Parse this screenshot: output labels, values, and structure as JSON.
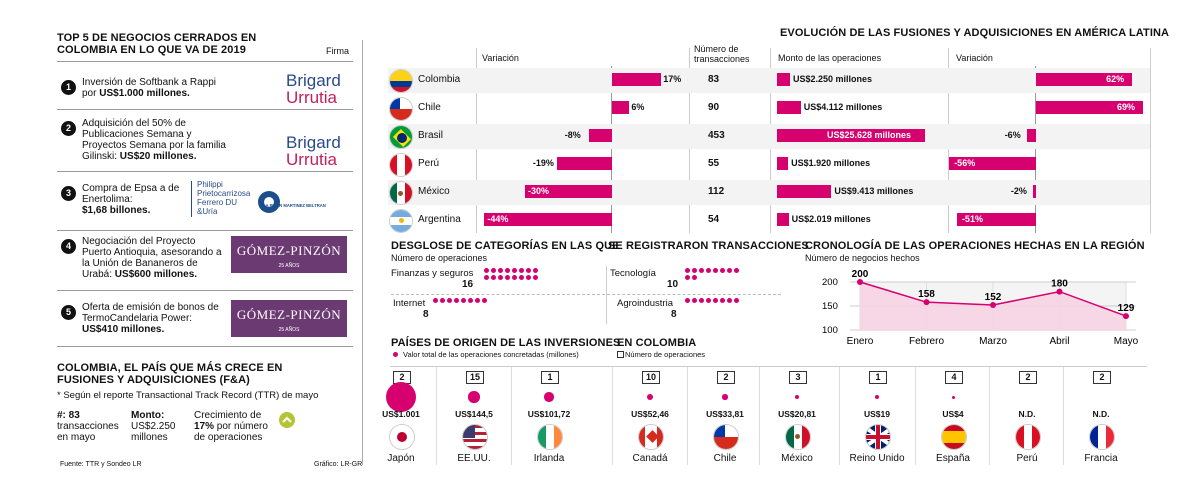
{
  "left": {
    "title": "TOP 5 DE NEGOCIOS CERRADOS EN COLOMBIA EN LO QUE VA DE 2019",
    "firma_label": "Firma",
    "deals": [
      {
        "num": "1",
        "line1": "Inversión de Softbank a Rappi",
        "line2": "por ",
        "bold": "US$1.000 millones."
      },
      {
        "num": "2",
        "line1": "Adquisición del 50% de",
        "line2": "Publicaciones Semana y",
        "line3": "Proyectos Semana por la familia",
        "line4": "Gilinski: ",
        "bold": "US$20 millones."
      },
      {
        "num": "3",
        "line1": "Compra de Epsa a de",
        "line2": "Enertolima:",
        "bold": "$1,68 billones."
      },
      {
        "num": "4",
        "line1": "Negociación del Proyecto",
        "line2": "Puerto Antioquia, asesorando a",
        "line3": "la Unión de Bananeros de",
        "line4": "Urabá: ",
        "bold": "US$600 millones."
      },
      {
        "num": "5",
        "line1": "Oferta de emisión de bonos de",
        "line2": "TermoCandelaria Power:",
        "bold": "US$410 millones."
      }
    ],
    "logos": {
      "brigard_top": "Brigard",
      "brigard_bottom": "Urrutia",
      "philippi": [
        "Philippi",
        "Prietocarrizosa",
        "Ferrero DU",
        "&Uría"
      ],
      "dla": "DLA PIPER MARTINEZ BELTRAN",
      "gp": "GÓMEZ-PINZÓN",
      "gp_sub": "25 AÑOS"
    },
    "section2_title": "COLOMBIA, EL PAÍS QUE MÁS CRECE EN FUSIONES Y ADQUISICIONES (F&A)",
    "section2_note": "* Según el reporte Transactional Track Record (TTR) de mayo",
    "stat1_label": "#: 83",
    "stat1_sub1": "transacciones",
    "stat1_sub2": "en mayo",
    "stat2_label": "Monto:",
    "stat2_sub1": "US$2.250",
    "stat2_sub2": "millones",
    "stat3_line1": "Crecimiento de",
    "stat3_line2a": "17%",
    "stat3_line2b": " por número",
    "stat3_line3": "de operaciones",
    "source": "Fuente: TTR y Sondeo LR",
    "grafico": "Gráfico: LR-GR"
  },
  "colors": {
    "accent": "#d6006f",
    "pink_light": "#f7d3e4",
    "gp_purple": "#6c3a73",
    "brand_blue": "#2b4a8b",
    "brand_red": "#c21f59"
  },
  "evolution": {
    "title": "EVOLUCIÓN DE LAS FUSIONES Y ADQUISICIONES EN AMÉRICA LATINA",
    "col_variacion": "Variación",
    "col_numero1": "Número de",
    "col_numero2": "transacciones",
    "col_monto": "Monto de las operaciones",
    "col_variacion2": "Variación"
  },
  "chart_data": [
    {
      "type": "table",
      "title": "EVOLUCIÓN DE LAS FUSIONES Y ADQUISICIONES EN AMÉRICA LATINA",
      "rows": [
        {
          "country": "Colombia",
          "flag": "colombia-flag",
          "variacion": 17,
          "variacion_label": "17%",
          "transacciones": "83",
          "monto": 2250,
          "monto_label": "US$2.250 millones",
          "variacion2": 62,
          "variacion2_label": "62%"
        },
        {
          "country": "Chile",
          "flag": "chile-flag",
          "variacion": 6,
          "variacion_label": "6%",
          "transacciones": "90",
          "monto": 4112,
          "monto_label": "US$4.112 millones",
          "variacion2": 69,
          "variacion2_label": "69%"
        },
        {
          "country": "Brasil",
          "flag": "brasil-flag",
          "variacion": -8,
          "variacion_label": "-8%",
          "transacciones": "453",
          "monto": 25628,
          "monto_label": "US$25.628 millones",
          "variacion2": -6,
          "variacion2_label": "-6%"
        },
        {
          "country": "Perú",
          "flag": "peru-flag",
          "variacion": -19,
          "variacion_label": "-19%",
          "transacciones": "55",
          "monto": 1920,
          "monto_label": "US$1.920 millones",
          "variacion2": -56,
          "variacion2_label": "-56%"
        },
        {
          "country": "México",
          "flag": "mexico-flag",
          "variacion": -30,
          "variacion_label": "-30%",
          "transacciones": "112",
          "monto": 9413,
          "monto_label": "US$9.413 millones",
          "variacion2": -2,
          "variacion2_label": "-2%"
        },
        {
          "country": "Argentina",
          "flag": "argentina-flag",
          "variacion": -44,
          "variacion_label": "-44%",
          "transacciones": "54",
          "monto": 2019,
          "monto_label": "US$2.019 millones",
          "variacion2": -51,
          "variacion2_label": "-51%"
        }
      ]
    },
    {
      "type": "bar",
      "title": "DESGLOSE DE CATEGORÍAS EN LAS QUE SE REGISTRARON TRANSACCIONES",
      "subtitle": "Número de operaciones",
      "categories": [
        {
          "name": "Finanzas y seguros",
          "value": 16,
          "label": "16"
        },
        {
          "name": "Tecnología",
          "value": 10,
          "label": "10"
        },
        {
          "name": "Internet",
          "value": 8,
          "label": "8"
        },
        {
          "name": "Agroindustria",
          "value": 8,
          "label": "8"
        }
      ],
      "title_left": "DESGLOSE DE CATEGORÍAS EN LAS QUE",
      "title_right": "SE REGISTRARON TRANSACCIONES"
    },
    {
      "type": "area",
      "title": "CRONOLOGÍA DE LAS OPERACIONES HECHAS EN LA REGIÓN",
      "subtitle": "Número de negocios hechos",
      "x": [
        "Enero",
        "Febrero",
        "Marzo",
        "Abril",
        "Mayo"
      ],
      "values": [
        200,
        158,
        152,
        180,
        129
      ],
      "value_labels": [
        "200",
        "158",
        "152",
        "180",
        "129"
      ],
      "yticks": [
        "200",
        "150",
        "100"
      ],
      "ylim": [
        100,
        200
      ]
    },
    {
      "type": "scatter",
      "title": "PAÍSES DE ORIGEN DE LAS INVERSIONES",
      "legend_value": "Valor total de las operaciones concretadas (millones)",
      "legend_count": "Número de operaciones",
      "subtitle_col": "EN COLOMBIA",
      "countries": [
        {
          "name": "Japón",
          "flag": "japon-flag",
          "count": "2",
          "value": 1001,
          "value_label": "US$1.001"
        },
        {
          "name": "EE.UU.",
          "flag": "eeuu-flag",
          "count": "15",
          "value": 144.5,
          "value_label": "US$144,5"
        },
        {
          "name": "Irlanda",
          "flag": "irlanda-flag",
          "count": "1",
          "value": 101.72,
          "value_label": "US$101,72"
        },
        {
          "name": "Canadá",
          "flag": "canada-flag",
          "count": "10",
          "value": 52.46,
          "value_label": "US$52,46"
        },
        {
          "name": "Chile",
          "flag": "chile-flag-2",
          "count": "2",
          "value": 33.81,
          "value_label": "US$33,81"
        },
        {
          "name": "México",
          "flag": "mexico-flag-2",
          "count": "3",
          "value": 20.81,
          "value_label": "US$20,81"
        },
        {
          "name": "Reino Unido",
          "flag": "uk-flag",
          "count": "1",
          "value": 19,
          "value_label": "US$19"
        },
        {
          "name": "España",
          "flag": "espana-flag",
          "count": "4",
          "value": 4,
          "value_label": "US$4"
        },
        {
          "name": "Perú",
          "flag": "peru-flag-2",
          "count": "2",
          "value": null,
          "value_label": "N.D."
        },
        {
          "name": "Francia",
          "flag": "francia-flag",
          "count": "2",
          "value": null,
          "value_label": "N.D."
        }
      ]
    }
  ]
}
